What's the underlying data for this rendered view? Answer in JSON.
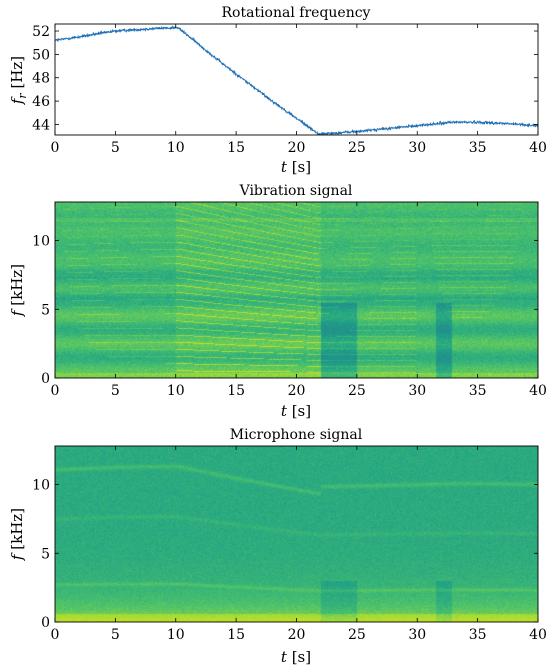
{
  "chart_data": [
    {
      "type": "line",
      "title": "Rotational frequency",
      "xlabel_var": "t",
      "xlabel_unit": "[s]",
      "ylabel_var": "f",
      "ylabel_sub": "r",
      "ylabel_unit": "[Hz]",
      "xlim": [
        0,
        40
      ],
      "ylim": [
        43.1,
        52.6
      ],
      "xticks": [
        "0",
        "5",
        "10",
        "15",
        "20",
        "25",
        "30",
        "35",
        "40"
      ],
      "yticks": [
        "44",
        "46",
        "48",
        "50",
        "52"
      ],
      "series": [
        {
          "color": "#1f6fb5",
          "x": [
            0,
            2,
            5,
            8,
            10,
            10.3,
            14,
            18,
            21.8,
            22.3,
            25,
            28,
            31,
            33,
            35,
            37,
            40
          ],
          "y": [
            51.2,
            51.5,
            52.0,
            52.2,
            52.3,
            52.2,
            49.1,
            46.0,
            43.2,
            43.2,
            43.4,
            43.7,
            44.0,
            44.2,
            44.2,
            44.1,
            43.9
          ]
        }
      ]
    },
    {
      "type": "heatmap",
      "title": "Vibration signal",
      "xlabel_var": "t",
      "xlabel_unit": "[s]",
      "ylabel_var": "f",
      "ylabel_unit": "[kHz]",
      "xlim": [
        0,
        40
      ],
      "ylim": [
        0,
        12.8
      ],
      "xticks": [
        "0",
        "5",
        "10",
        "15",
        "20",
        "25",
        "30",
        "35",
        "40"
      ],
      "yticks": [
        "0",
        "5",
        "10"
      ],
      "colormap": [
        "#2aa58a",
        "#43b878",
        "#8ccd54",
        "#dfe23a"
      ]
    },
    {
      "type": "heatmap",
      "title": "Microphone signal",
      "xlabel_var": "t",
      "xlabel_unit": "[s]",
      "ylabel_var": "f",
      "ylabel_unit": "[kHz]",
      "xlim": [
        0,
        40
      ],
      "ylim": [
        0,
        12.8
      ],
      "xticks": [
        "0",
        "5",
        "10",
        "15",
        "20",
        "25",
        "30",
        "35",
        "40"
      ],
      "yticks": [
        "0",
        "5",
        "10"
      ],
      "colormap": [
        "#2aa58a",
        "#43b878",
        "#8ccd54",
        "#dfe23a"
      ]
    }
  ]
}
